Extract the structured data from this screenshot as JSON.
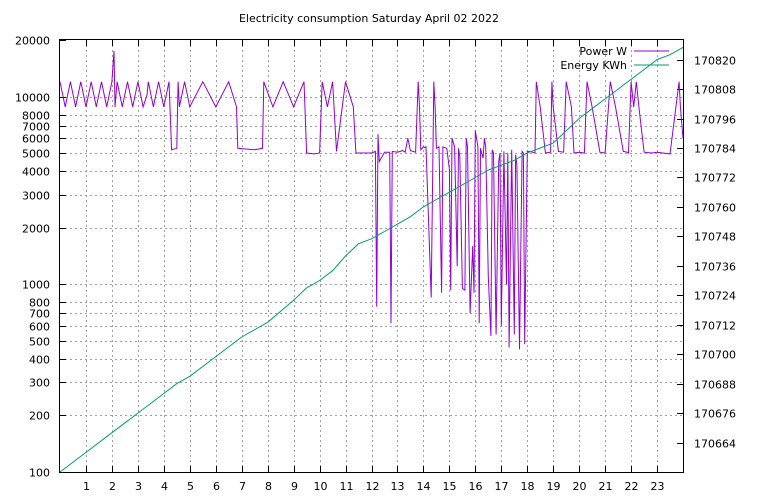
{
  "chart_data": {
    "type": "line",
    "title": "Electricity consumption Saturday April 02 2022",
    "x_ticks": [
      "1",
      "2",
      "3",
      "4",
      "5",
      "6",
      "7",
      "8",
      "9",
      "10",
      "11",
      "12",
      "13",
      "14",
      "15",
      "16",
      "17",
      "18",
      "19",
      "20",
      "21",
      "22",
      "23"
    ],
    "xlim": [
      0,
      24
    ],
    "y_left": {
      "scale": "log",
      "range": [
        100,
        20000
      ],
      "ticks": [
        100,
        200,
        300,
        400,
        500,
        600,
        700,
        800,
        1000,
        2000,
        3000,
        4000,
        5000,
        6000,
        7000,
        8000,
        10000,
        20000
      ],
      "tick_labels": [
        "100",
        "200",
        "300",
        "400",
        "500",
        "600",
        "700",
        "800",
        "1000",
        "2000",
        "3000",
        "4000",
        "5000",
        "6000",
        "7000",
        "8000",
        "10000",
        "20000"
      ]
    },
    "y_right": {
      "scale": "linear",
      "range": [
        170652,
        170828
      ],
      "ticks": [
        170664,
        170676,
        170688,
        170700,
        170712,
        170724,
        170736,
        170748,
        170760,
        170772,
        170784,
        170796,
        170808,
        170820
      ],
      "tick_labels": [
        "170664",
        "170676",
        "170688",
        "170700",
        "170712",
        "170724",
        "170736",
        "170748",
        "170760",
        "170772",
        "170784",
        "170796",
        "170808",
        "170820"
      ]
    },
    "grid": true,
    "legend_position": "top-right",
    "series": [
      {
        "name": "Power W",
        "axis": "left",
        "color": "#9400d3",
        "x": [
          0,
          0.2,
          0.4,
          0.6,
          0.8,
          1.0,
          1.2,
          1.4,
          1.6,
          1.8,
          2.0,
          2.08,
          2.12,
          2.2,
          2.4,
          2.6,
          2.8,
          3.0,
          3.2,
          3.35,
          3.4,
          3.6,
          3.8,
          4.0,
          4.2,
          4.3,
          4.5,
          4.55,
          4.6,
          4.8,
          5.0,
          5.5,
          6.0,
          6.5,
          6.8,
          6.85,
          7.2,
          7.5,
          7.8,
          7.85,
          8.2,
          8.6,
          9.0,
          9.4,
          9.5,
          9.8,
          10.0,
          10.1,
          10.3,
          10.5,
          10.65,
          11.0,
          11.3,
          11.4,
          11.5,
          11.8,
          12.0,
          12.15,
          12.2,
          12.25,
          12.3,
          12.5,
          12.7,
          12.75,
          12.8,
          13.0,
          13.2,
          13.3,
          13.4,
          13.5,
          13.7,
          13.8,
          13.85,
          13.9,
          14.0,
          14.05,
          14.1,
          14.3,
          14.4,
          14.45,
          14.5,
          14.6,
          14.7,
          14.75,
          14.9,
          15.0,
          15.05,
          15.1,
          15.2,
          15.3,
          15.35,
          15.4,
          15.5,
          15.6,
          15.65,
          15.7,
          15.8,
          15.9,
          15.95,
          16.0,
          16.1,
          16.15,
          16.2,
          16.3,
          16.35,
          16.4,
          16.5,
          16.6,
          16.65,
          16.7,
          16.8,
          16.9,
          16.95,
          17.0,
          17.1,
          17.2,
          17.25,
          17.3,
          17.4,
          17.5,
          17.55,
          17.6,
          17.7,
          17.8,
          17.85,
          17.9,
          18.0,
          18.05,
          18.1,
          18.2,
          18.3,
          18.35,
          18.5,
          18.7,
          18.9,
          18.95,
          19.0,
          19.2,
          19.4,
          19.5,
          19.7,
          19.8,
          20.0,
          20.2,
          20.3,
          20.5,
          20.8,
          21.0,
          21.2,
          21.4,
          21.7,
          21.85,
          21.9,
          22.0,
          22.1,
          22.2,
          22.3,
          22.5,
          22.8,
          23.0,
          23.5,
          23.85,
          23.9,
          24.0
        ],
        "y": [
          12000,
          8800,
          12000,
          8800,
          12000,
          8800,
          12000,
          8800,
          12000,
          8800,
          12000,
          17500,
          8800,
          12000,
          8800,
          12000,
          8800,
          12000,
          8800,
          10200,
          12000,
          8800,
          12000,
          8800,
          12000,
          5200,
          5300,
          12000,
          8800,
          12000,
          8800,
          12000,
          8800,
          12000,
          8800,
          5300,
          5250,
          5200,
          5300,
          12000,
          8800,
          12000,
          8800,
          12000,
          5000,
          4950,
          5000,
          12000,
          8800,
          12000,
          5100,
          12000,
          8800,
          5000,
          5000,
          5000,
          5000,
          5100,
          760,
          6300,
          4500,
          5050,
          5050,
          620,
          5100,
          5050,
          5150,
          5050,
          6000,
          5150,
          5050,
          12000,
          8800,
          5200,
          5400,
          5350,
          5400,
          850,
          12000,
          8800,
          5300,
          5400,
          900,
          5400,
          5300,
          4100,
          930,
          6000,
          5400,
          1250,
          5300,
          4800,
          950,
          930,
          6000,
          5400,
          700,
          1600,
          900,
          6600,
          5400,
          620,
          5300,
          4700,
          6000,
          5400,
          1100,
          530,
          5200,
          5000,
          540,
          4500,
          5000,
          600,
          5100,
          1000,
          5000,
          460,
          5200,
          540,
          4900,
          4300,
          450,
          5100,
          5000,
          480,
          5100,
          5100,
          5100,
          5050,
          5000,
          12000,
          8800,
          5000,
          5050,
          12000,
          8800,
          5100,
          5050,
          12000,
          8800,
          5000,
          5050,
          5000,
          12000,
          8800,
          5050,
          5000,
          12000,
          8800,
          5100,
          5050,
          5000,
          12000,
          8800,
          12000,
          8800,
          5050,
          5000,
          5050,
          4950,
          12000,
          8800,
          6000
        ]
      },
      {
        "name": "Energy KWh",
        "axis": "right",
        "color": "#009e73",
        "x": [
          0,
          1,
          2,
          3,
          4,
          4.5,
          5,
          6,
          7,
          8,
          9,
          9.5,
          10,
          10.5,
          11,
          11.5,
          12,
          12.5,
          13,
          13.5,
          14,
          14.5,
          15,
          15.5,
          16,
          16.5,
          17,
          17.5,
          18,
          18.5,
          19,
          19.5,
          20,
          20.5,
          21,
          21.5,
          22,
          22.5,
          23,
          23.5,
          24
        ],
        "y": [
          170652,
          170660,
          170668,
          170676,
          170684,
          170688,
          170691,
          170699,
          170707,
          170713,
          170722,
          170727,
          170730,
          170734,
          170740,
          170745,
          170747,
          170750,
          170753,
          170756,
          170760,
          170763,
          170766,
          170769,
          170772,
          170775,
          170777,
          170779,
          170782,
          170784,
          170786,
          170791,
          170796,
          170800,
          170804,
          170808,
          170812,
          170816,
          170820,
          170822,
          170825
        ]
      }
    ]
  }
}
